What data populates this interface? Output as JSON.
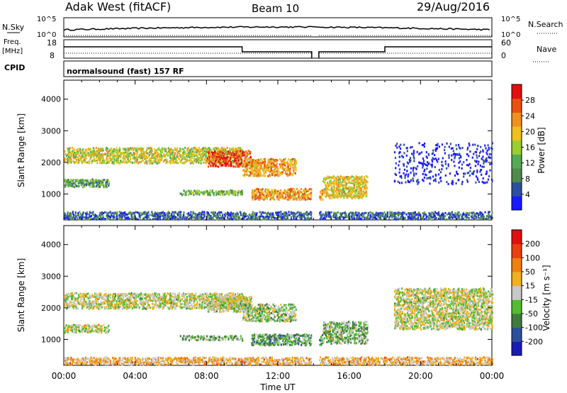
{
  "header": {
    "station": "Adak West (fitACF)",
    "beam": "Beam 10",
    "date": "29/Aug/2016"
  },
  "params": {
    "nsky_label": "N.Sky",
    "nsky_ticks": [
      "10^5",
      "10^0"
    ],
    "nsearch_label": "N.Search",
    "nsearch_ticks": [
      "10^5",
      "10^0"
    ],
    "freq_label": "Freq.",
    "freq_unit": "[MHz]",
    "freq_ticks": [
      "18",
      "8"
    ],
    "nave_label": "Nave",
    "nave_ticks": [
      "60",
      "0"
    ],
    "cpid_label": "CPID",
    "cpid_value": "normalsound (fast) 157 RF"
  },
  "colors": {
    "power": [
      "#1a1aff",
      "#2c4fa0",
      "#4f8a4f",
      "#55aa55",
      "#9acd32",
      "#f0c020",
      "#f09020",
      "#e85010",
      "#e01010"
    ],
    "velocity": [
      "#1a1ab4",
      "#2c4f9a",
      "#3f7a3f",
      "#55bb33",
      "#c8c8c8",
      "#f0b020",
      "#f08010",
      "#e84010",
      "#e01010"
    ]
  },
  "chart_data": [
    {
      "type": "heatmap",
      "name": "power",
      "ylabel": "Slant Range [km]",
      "xlabel": "",
      "ylim": [
        180,
        4600
      ],
      "xlim": [
        0,
        24
      ],
      "y_ticks": [
        "4000",
        "3000",
        "2000",
        "1000"
      ],
      "x_ticks": [
        "00:00",
        "04:00",
        "08:00",
        "12:00",
        "16:00",
        "20:00",
        "00:00"
      ],
      "colorbar_label": "Power [dB]",
      "colorbar_ticks": [
        "28",
        "24",
        "20",
        "16",
        "12",
        "8",
        "4"
      ],
      "colorbar_range": [
        0,
        30
      ],
      "regions": [
        {
          "t0": 0.0,
          "t1": 10.0,
          "r0": 1950,
          "r1": 2450,
          "level": 0.55
        },
        {
          "t0": 8.0,
          "t1": 10.5,
          "r0": 1850,
          "r1": 2350,
          "level": 0.85
        },
        {
          "t0": 10.0,
          "t1": 13.0,
          "r0": 1550,
          "r1": 2100,
          "level": 0.7
        },
        {
          "t0": 0.0,
          "t1": 2.5,
          "r0": 1200,
          "r1": 1450,
          "level": 0.35
        },
        {
          "t0": 6.5,
          "t1": 10.0,
          "r0": 950,
          "r1": 1100,
          "level": 0.4
        },
        {
          "t0": 10.5,
          "t1": 14.5,
          "r0": 800,
          "r1": 1150,
          "level": 0.7
        },
        {
          "t0": 14.5,
          "t1": 17.0,
          "r0": 850,
          "r1": 1550,
          "level": 0.6
        },
        {
          "t0": 0.0,
          "t1": 24.0,
          "r0": 180,
          "r1": 420,
          "level": 0.2
        },
        {
          "t0": 18.5,
          "t1": 24.0,
          "r0": 1300,
          "r1": 2600,
          "level": 0.05
        }
      ]
    },
    {
      "type": "heatmap",
      "name": "velocity",
      "ylabel": "Slant Range [km]",
      "xlabel": "Time UT",
      "ylim": [
        180,
        4600
      ],
      "xlim": [
        0,
        24
      ],
      "y_ticks": [
        "4000",
        "3000",
        "2000",
        "1000"
      ],
      "x_ticks": [
        "00:00",
        "04:00",
        "08:00",
        "12:00",
        "16:00",
        "20:00",
        "00:00"
      ],
      "colorbar_label": "Velocity [m s⁻¹]",
      "colorbar_ticks": [
        "200",
        "100",
        "50",
        "15",
        "-15",
        "-50",
        "-100",
        "-200"
      ],
      "colorbar_range": [
        -250,
        250
      ],
      "regions": [
        {
          "t0": 0.0,
          "t1": 10.0,
          "r0": 1950,
          "r1": 2450,
          "level": 0.5
        },
        {
          "t0": 8.0,
          "t1": 10.5,
          "r0": 1850,
          "r1": 2350,
          "level": 0.5
        },
        {
          "t0": 10.0,
          "t1": 13.0,
          "r0": 1550,
          "r1": 2100,
          "level": 0.45
        },
        {
          "t0": 0.0,
          "t1": 2.5,
          "r0": 1200,
          "r1": 1450,
          "level": 0.5
        },
        {
          "t0": 6.5,
          "t1": 10.0,
          "r0": 950,
          "r1": 1100,
          "level": 0.4
        },
        {
          "t0": 10.5,
          "t1": 14.5,
          "r0": 800,
          "r1": 1150,
          "level": 0.35
        },
        {
          "t0": 14.5,
          "t1": 17.0,
          "r0": 850,
          "r1": 1550,
          "level": 0.4
        },
        {
          "t0": 0.0,
          "t1": 24.0,
          "r0": 180,
          "r1": 420,
          "level": 0.62
        },
        {
          "t0": 18.5,
          "t1": 24.0,
          "r0": 1300,
          "r1": 2600,
          "level": 0.5
        }
      ]
    }
  ]
}
